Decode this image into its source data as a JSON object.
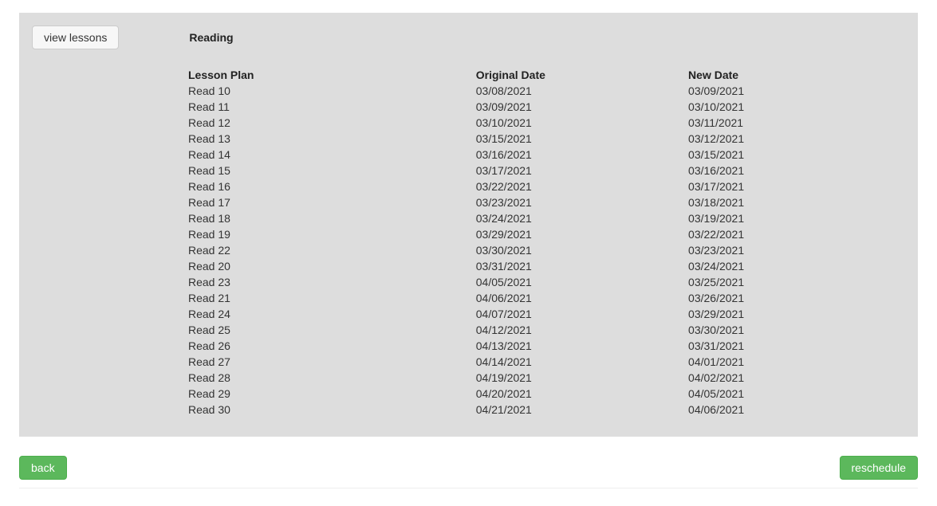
{
  "buttons": {
    "view_lessons": "view lessons",
    "back": "back",
    "reschedule": "reschedule"
  },
  "section_title": "Reading",
  "table": {
    "headers": {
      "name": "Lesson Plan",
      "original": "Original Date",
      "new": "New Date"
    },
    "rows": [
      {
        "name": "Read 10",
        "original": "03/08/2021",
        "new": "03/09/2021"
      },
      {
        "name": "Read 11",
        "original": "03/09/2021",
        "new": "03/10/2021"
      },
      {
        "name": "Read 12",
        "original": "03/10/2021",
        "new": "03/11/2021"
      },
      {
        "name": "Read 13",
        "original": "03/15/2021",
        "new": "03/12/2021"
      },
      {
        "name": "Read 14",
        "original": "03/16/2021",
        "new": "03/15/2021"
      },
      {
        "name": "Read 15",
        "original": "03/17/2021",
        "new": "03/16/2021"
      },
      {
        "name": "Read 16",
        "original": "03/22/2021",
        "new": "03/17/2021"
      },
      {
        "name": "Read 17",
        "original": "03/23/2021",
        "new": "03/18/2021"
      },
      {
        "name": "Read 18",
        "original": "03/24/2021",
        "new": "03/19/2021"
      },
      {
        "name": "Read 19",
        "original": "03/29/2021",
        "new": "03/22/2021"
      },
      {
        "name": "Read 22",
        "original": "03/30/2021",
        "new": "03/23/2021"
      },
      {
        "name": "Read 20",
        "original": "03/31/2021",
        "new": "03/24/2021"
      },
      {
        "name": "Read 23",
        "original": "04/05/2021",
        "new": "03/25/2021"
      },
      {
        "name": "Read 21",
        "original": "04/06/2021",
        "new": "03/26/2021"
      },
      {
        "name": "Read 24",
        "original": "04/07/2021",
        "new": "03/29/2021"
      },
      {
        "name": "Read 25",
        "original": "04/12/2021",
        "new": "03/30/2021"
      },
      {
        "name": "Read 26",
        "original": "04/13/2021",
        "new": "03/31/2021"
      },
      {
        "name": "Read 27",
        "original": "04/14/2021",
        "new": "04/01/2021"
      },
      {
        "name": "Read 28",
        "original": "04/19/2021",
        "new": "04/02/2021"
      },
      {
        "name": "Read 29",
        "original": "04/20/2021",
        "new": "04/05/2021"
      },
      {
        "name": "Read 30",
        "original": "04/21/2021",
        "new": "04/06/2021"
      }
    ]
  },
  "colors": {
    "panel_bg": "#dddddd",
    "btn_default_bg": "#f7f7f7",
    "btn_default_border": "#cccccc",
    "btn_success_bg": "#5cb85c",
    "btn_success_border": "#4cae4c",
    "text": "#333333",
    "btn_success_text": "#ffffff"
  }
}
